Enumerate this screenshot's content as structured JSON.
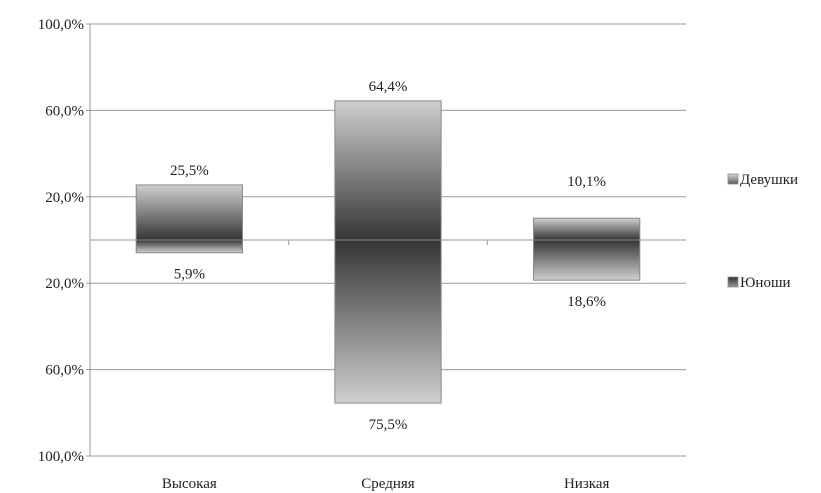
{
  "chart_data": {
    "type": "bar",
    "subtype": "butterfly-stacked",
    "categories": [
      "Высокая",
      "Средняя",
      "Низкая"
    ],
    "series": [
      {
        "name": "Девушки",
        "direction": "up",
        "values": [
          25.5,
          64.4,
          10.1
        ],
        "labels": [
          "25,5%",
          "64,4%",
          "10,1%"
        ]
      },
      {
        "name": "Юноши",
        "direction": "down",
        "values": [
          5.9,
          75.5,
          18.6
        ],
        "labels": [
          "5,9%",
          "75,5%",
          "18,6%"
        ]
      }
    ],
    "y_ticks": [
      {
        "value": 100,
        "label": "100,0%"
      },
      {
        "value": 60,
        "label": "60,0%"
      },
      {
        "value": 20,
        "label": "20,0%"
      },
      {
        "value": -20,
        "label": "20,0%"
      },
      {
        "value": -60,
        "label": "60,0%"
      },
      {
        "value": -100,
        "label": "100,0%"
      }
    ],
    "ylim": [
      -100,
      100
    ],
    "grid": true,
    "legend": "right",
    "colors": {
      "grid": "#9a9a9a",
      "bar_light": "#c8c8c8",
      "bar_dark": "#3a3a3a",
      "bar_border": "#8a8a8a"
    }
  }
}
